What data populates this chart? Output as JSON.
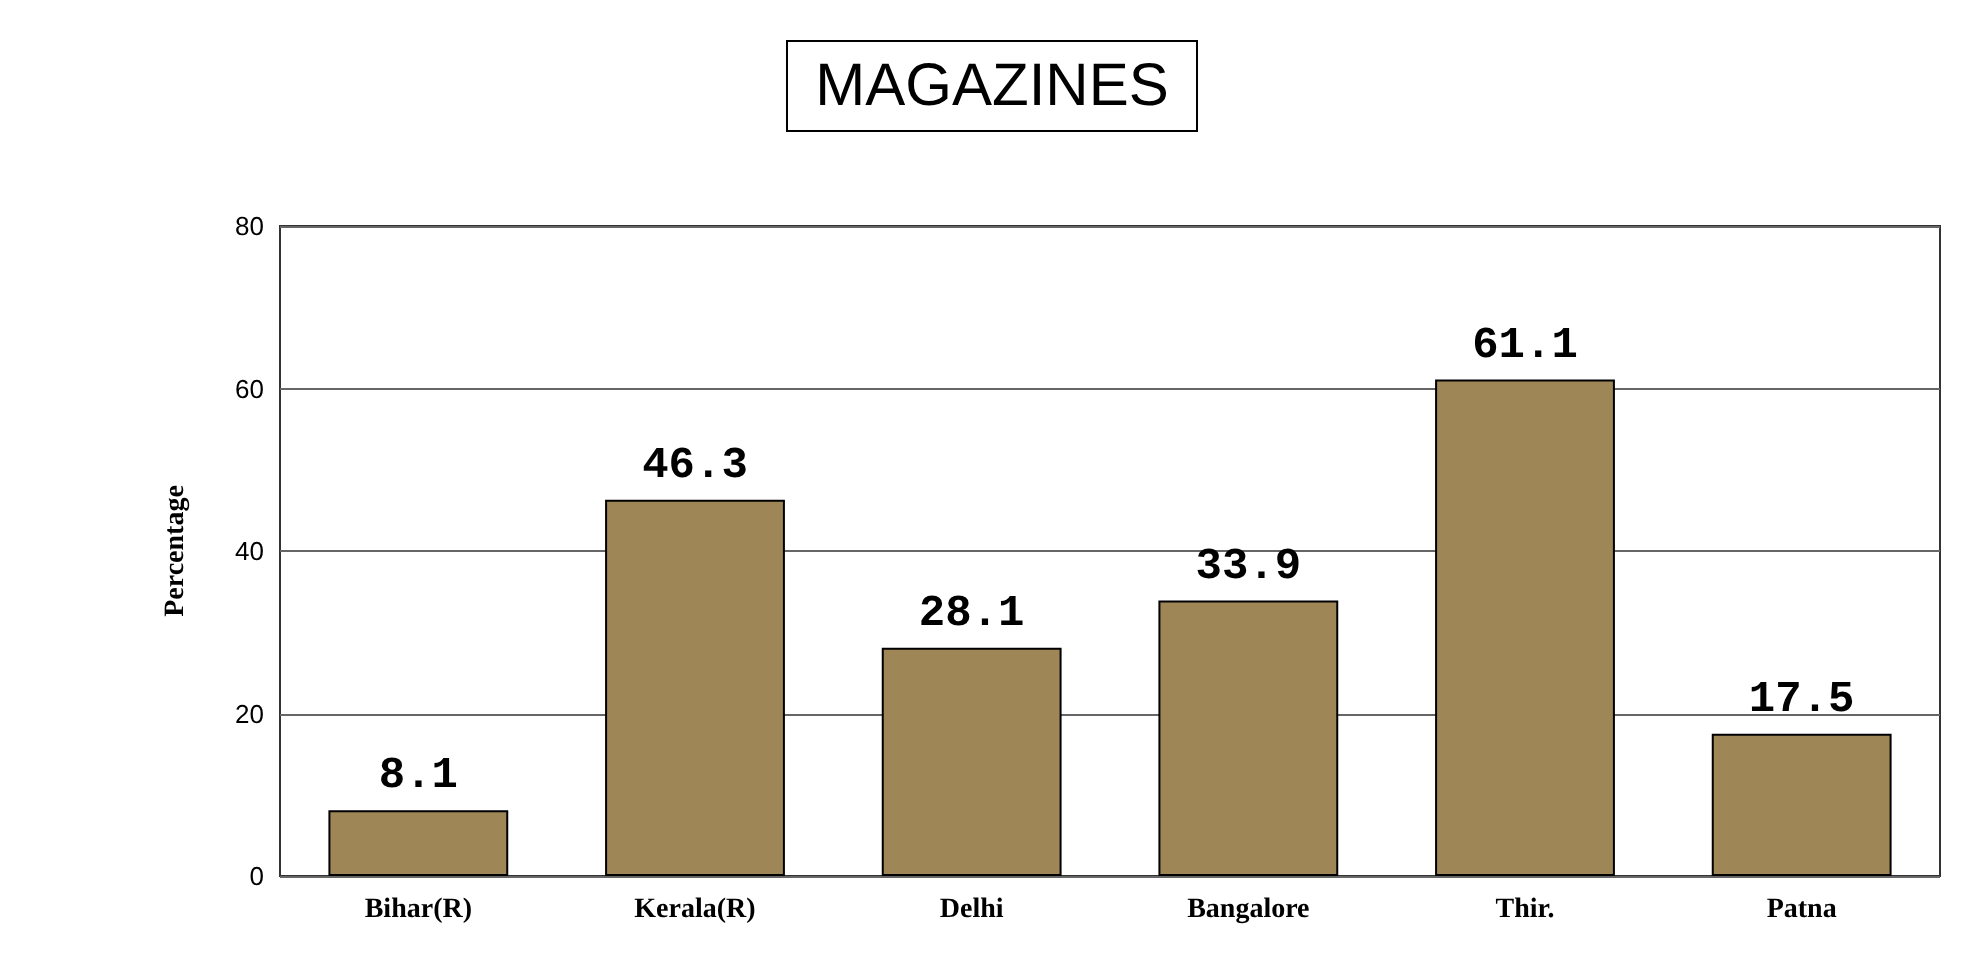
{
  "chart_data": {
    "type": "bar",
    "title": "MAGAZINES",
    "ylabel": "Percentage",
    "categories": [
      "Bihar(R)",
      "Kerala(R)",
      "Delhi",
      "Bangalore",
      "Thir.",
      "Patna"
    ],
    "values": [
      8.1,
      46.3,
      28.1,
      33.9,
      61.1,
      17.5
    ],
    "color": "#9e8656",
    "ylim": [
      0,
      80
    ],
    "yticks": [
      0,
      20,
      40,
      60,
      80
    ],
    "grid": "y",
    "data_labels": true
  }
}
